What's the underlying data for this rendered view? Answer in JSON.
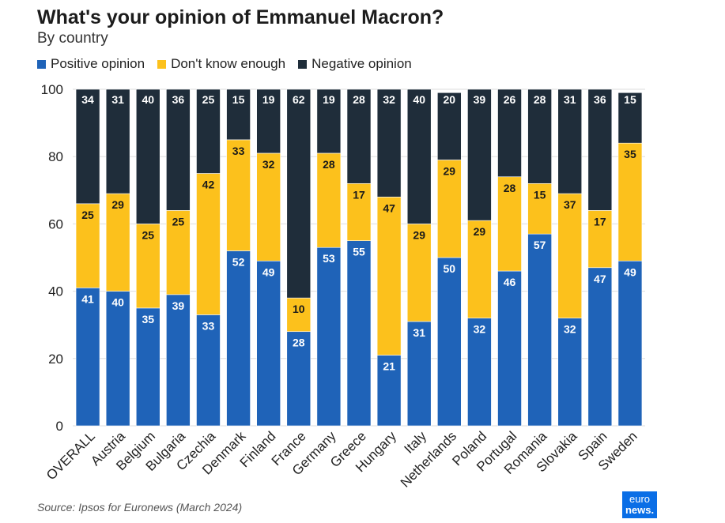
{
  "colors": {
    "positive": "#1f63b8",
    "dontknow": "#fcc11c",
    "negative": "#1f2d3a",
    "grid": "#dddddd"
  },
  "legend": [
    {
      "label": "Positive opinion",
      "color": "#1f63b8"
    },
    {
      "label": "Don't know enough",
      "color": "#fcc11c"
    },
    {
      "label": "Negative opinion",
      "color": "#1f2d3a"
    }
  ],
  "source": "Source: Ipsos for Euronews (March 2024)",
  "logo": {
    "line1": "euro",
    "line2": "news."
  },
  "chart_data": {
    "type": "bar",
    "stacked": true,
    "title": "What's your opinion of Emmanuel Macron?",
    "subtitle": "By country",
    "ylim": [
      0,
      100
    ],
    "yticks": [
      0,
      20,
      40,
      60,
      80,
      100
    ],
    "grid": true,
    "legend_position": "top-left",
    "categories": [
      "OVERALL",
      "Austria",
      "Belgium",
      "Bulgaria",
      "Czechia",
      "Denmark",
      "Finland",
      "France",
      "Germany",
      "Greece",
      "Hungary",
      "Italy",
      "Netherlands",
      "Poland",
      "Portugal",
      "Romania",
      "Slovakia",
      "Spain",
      "Sweden"
    ],
    "series": [
      {
        "name": "Positive opinion",
        "color": "#1f63b8",
        "values": [
          41,
          40,
          35,
          39,
          33,
          52,
          49,
          28,
          53,
          55,
          21,
          31,
          50,
          32,
          46,
          57,
          32,
          47,
          49
        ]
      },
      {
        "name": "Don't know enough",
        "color": "#fcc11c",
        "values": [
          25,
          29,
          25,
          25,
          42,
          33,
          32,
          10,
          28,
          17,
          47,
          29,
          29,
          29,
          28,
          15,
          37,
          17,
          35
        ]
      },
      {
        "name": "Negative opinion",
        "color": "#1f2d3a",
        "values": [
          34,
          31,
          40,
          36,
          25,
          15,
          19,
          62,
          19,
          28,
          32,
          40,
          20,
          39,
          26,
          28,
          31,
          36,
          15
        ]
      }
    ]
  }
}
